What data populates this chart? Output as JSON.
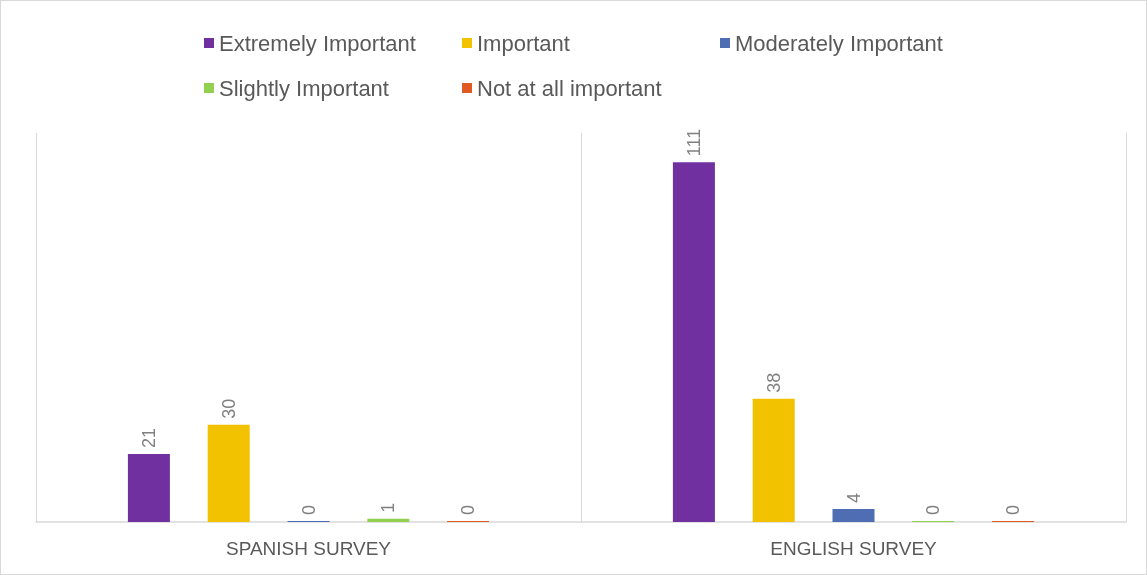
{
  "chart_data": {
    "type": "bar",
    "categories": [
      "SPANISH SURVEY",
      "ENGLISH SURVEY"
    ],
    "series": [
      {
        "name": "Extremely Important",
        "color": "#7030a0",
        "values": [
          21,
          111
        ]
      },
      {
        "name": "Important",
        "color": "#f2c200",
        "values": [
          30,
          38
        ]
      },
      {
        "name": "Moderately Important",
        "color": "#4e6db2",
        "values": [
          0,
          4
        ]
      },
      {
        "name": "Slightly Important",
        "color": "#92d050",
        "values": [
          1,
          0
        ]
      },
      {
        "name": "Not at all important",
        "color": "#e05a26",
        "values": [
          0,
          0
        ]
      }
    ],
    "data_labels": true,
    "legend": "top",
    "grid": "x",
    "tick_labels": "x"
  }
}
